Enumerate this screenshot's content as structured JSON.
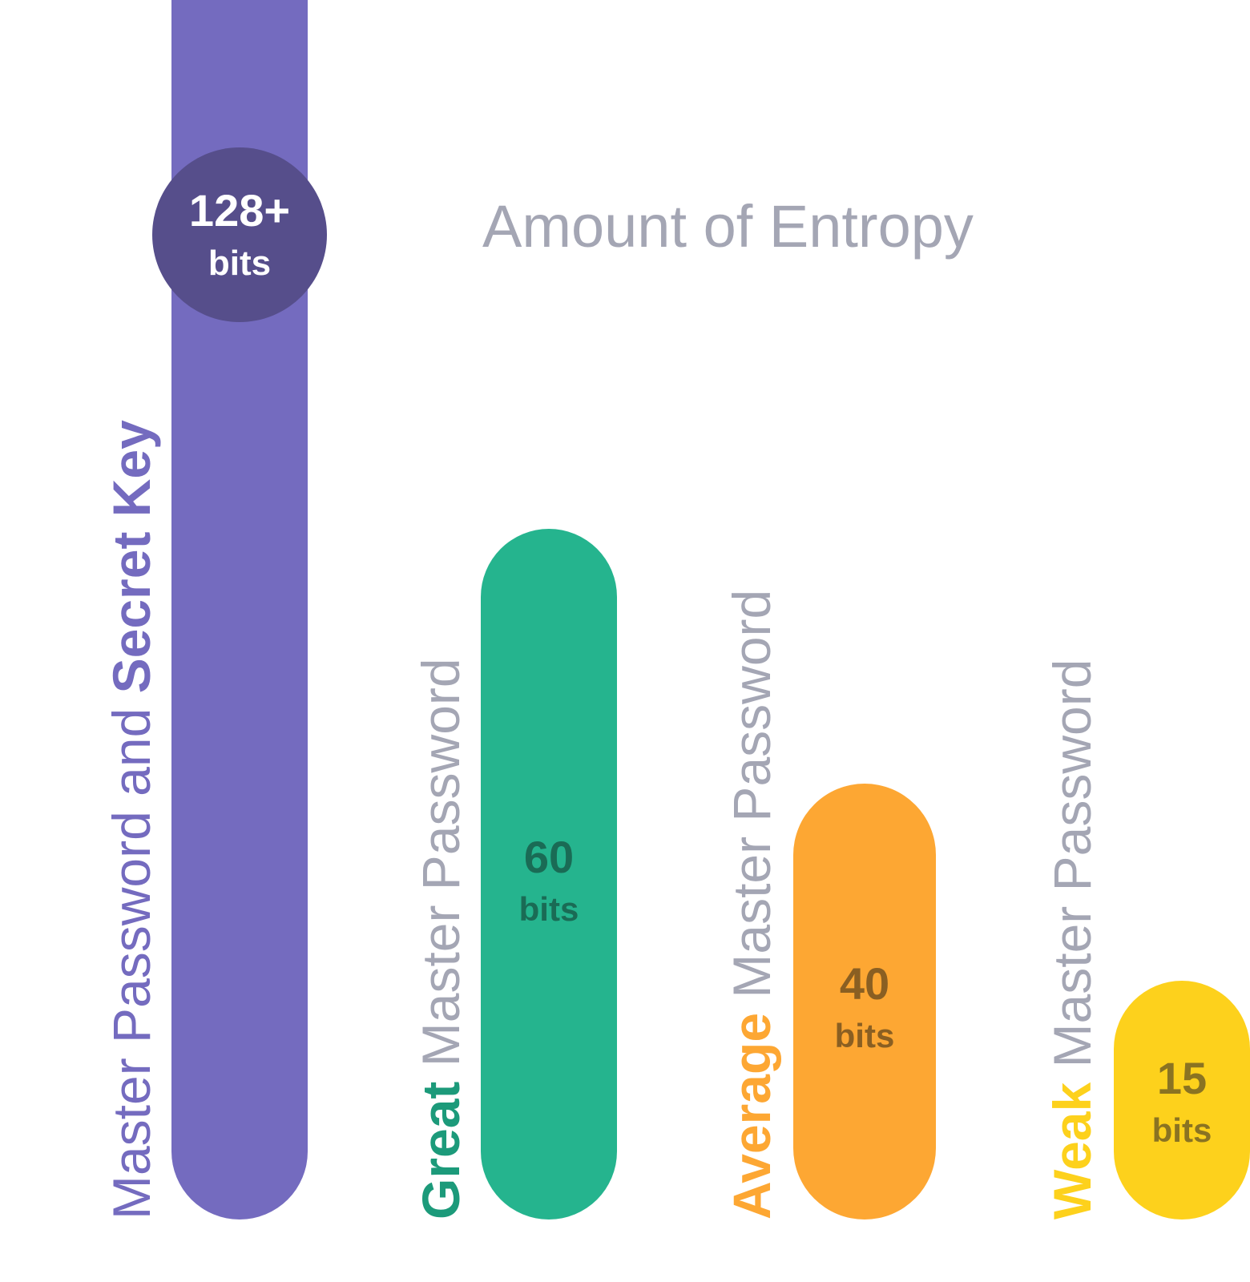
{
  "chart_data": {
    "type": "bar",
    "title": "Amount of Entropy",
    "value_unit": "bits",
    "series": [
      {
        "id": "secret-key",
        "label_parts": [
          {
            "text": "Master Password and ",
            "bold": false
          },
          {
            "text": "Secret Key",
            "bold": true
          }
        ],
        "value": 128,
        "value_label": "128+",
        "color": "#746bbf",
        "label_color": "#746bbf",
        "badge_color": "#564e8b",
        "badge_text_color": "#ffffff"
      },
      {
        "id": "great",
        "label_parts": [
          {
            "text": "Great",
            "bold": true,
            "color": "#1c9a7a"
          },
          {
            "text": " Master Password",
            "bold": false,
            "color": "#a4a6b4"
          }
        ],
        "value": 60,
        "value_label": "60",
        "color": "#25b48e",
        "badge_text_color": "#1a6b55"
      },
      {
        "id": "average",
        "label_parts": [
          {
            "text": "Average",
            "bold": true,
            "color": "#fda733"
          },
          {
            "text": " Master Password",
            "bold": false,
            "color": "#a4a6b4"
          }
        ],
        "value": 40,
        "value_label": "40",
        "color": "#fda733",
        "badge_text_color": "#8a5f22"
      },
      {
        "id": "weak",
        "label_parts": [
          {
            "text": "Weak",
            "bold": true,
            "color": "#fdd11c"
          },
          {
            "text": " Master Password",
            "bold": false,
            "color": "#a4a6b4"
          }
        ],
        "value": 15,
        "value_label": "15",
        "color": "#fdd11c",
        "badge_text_color": "#8a7322"
      }
    ]
  }
}
